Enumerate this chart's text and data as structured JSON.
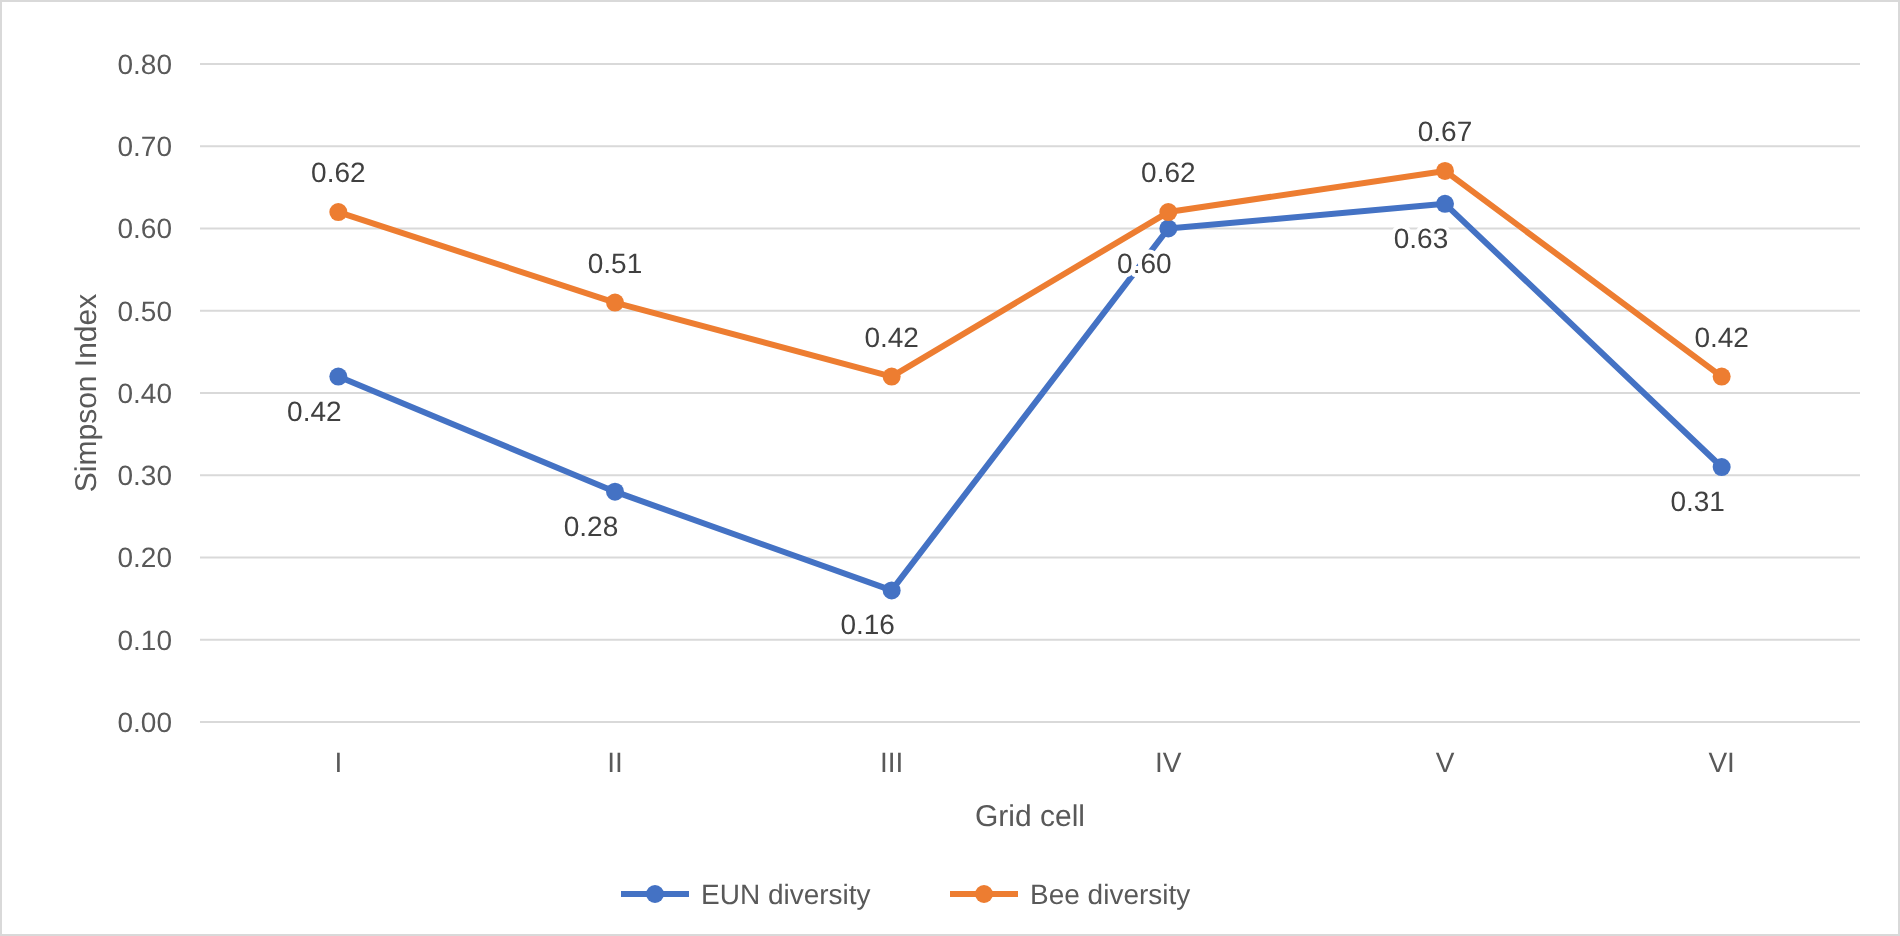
{
  "chart_data": {
    "type": "line",
    "xlabel": "Grid cell",
    "ylabel": "Simpson Index",
    "categories": [
      "I",
      "II",
      "III",
      "IV",
      "V",
      "VI"
    ],
    "ylim": [
      0,
      0.8
    ],
    "yticks": [
      {
        "value": 0,
        "label": "0.00"
      },
      {
        "value": 0.1,
        "label": "0.10"
      },
      {
        "value": 0.2,
        "label": "0.20"
      },
      {
        "value": 0.3,
        "label": "0.30"
      },
      {
        "value": 0.4,
        "label": "0.40"
      },
      {
        "value": 0.5,
        "label": "0.50"
      },
      {
        "value": 0.6,
        "label": "0.60"
      },
      {
        "value": 0.7,
        "label": "0.70"
      },
      {
        "value": 0.8,
        "label": "0.80"
      }
    ],
    "grid": "y",
    "legend": "bottom",
    "marker": "circle",
    "line_style": "solid",
    "series": [
      {
        "name": "EUN diversity",
        "color": "#4472c4",
        "values": [
          0.42,
          0.28,
          0.16,
          0.6,
          0.63,
          0.31
        ],
        "value_labels": [
          "0.42",
          "0.28",
          "0.16",
          "0.60",
          "0.63",
          "0.31"
        ]
      },
      {
        "name": "Bee diversity",
        "color": "#ed7d31",
        "values": [
          0.62,
          0.51,
          0.42,
          0.62,
          0.67,
          0.42
        ],
        "value_labels": [
          "0.62",
          "0.51",
          "0.42",
          "0.62",
          "0.67",
          "0.42"
        ]
      }
    ]
  }
}
